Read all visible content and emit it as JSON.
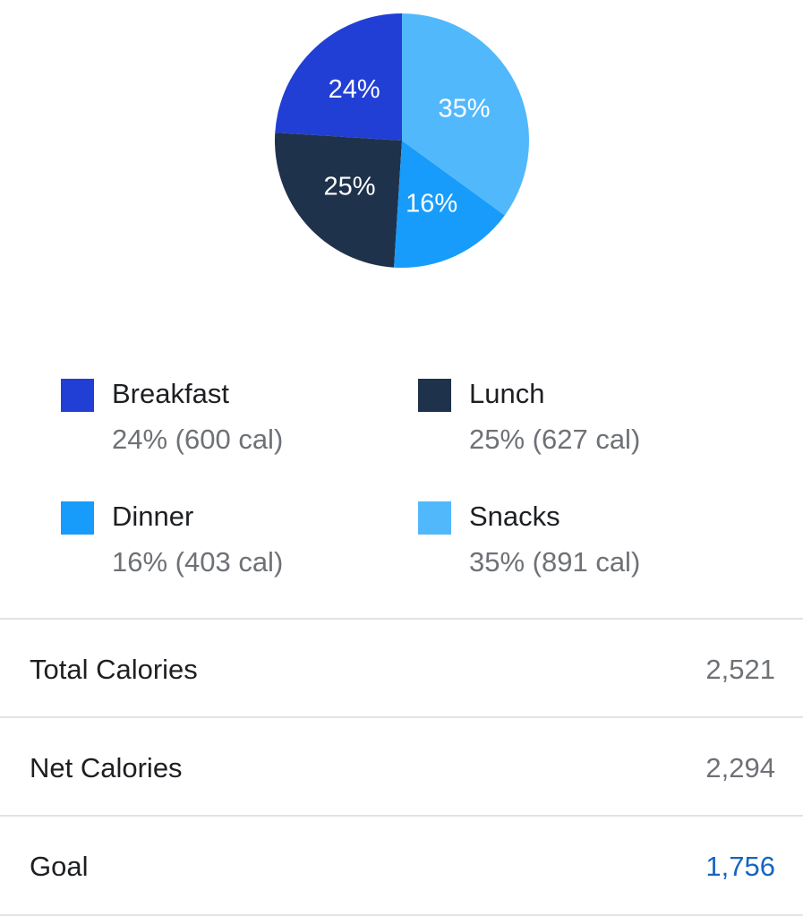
{
  "chart_data": {
    "type": "pie",
    "slices": [
      {
        "name": "Breakfast",
        "percent": 24,
        "calories": 600,
        "label": "24%",
        "color": "#213fd4"
      },
      {
        "name": "Lunch",
        "percent": 25,
        "calories": 627,
        "label": "25%",
        "color": "#1f324b"
      },
      {
        "name": "Dinner",
        "percent": 16,
        "calories": 403,
        "label": "16%",
        "color": "#179cfb"
      },
      {
        "name": "Snacks",
        "percent": 35,
        "calories": 891,
        "label": "35%",
        "color": "#52b8fc"
      }
    ],
    "start": "top",
    "direction": "counterclockwise"
  },
  "legend": {
    "items": [
      {
        "name": "Breakfast",
        "detail": "24% (600 cal)",
        "color": "#213fd4"
      },
      {
        "name": "Lunch",
        "detail": "25% (627 cal)",
        "color": "#1f324b"
      },
      {
        "name": "Dinner",
        "detail": "16% (403 cal)",
        "color": "#179cfb"
      },
      {
        "name": "Snacks",
        "detail": "35% (891 cal)",
        "color": "#52b8fc"
      }
    ]
  },
  "summary": {
    "total": {
      "label": "Total Calories",
      "value": "2,521"
    },
    "net": {
      "label": "Net Calories",
      "value": "2,294"
    },
    "goal": {
      "label": "Goal",
      "value": "1,756"
    }
  },
  "colors": {
    "text_primary": "#1d1f22",
    "text_secondary": "#6e7176",
    "accent": "#1565c0",
    "divider": "#e1e3e7"
  }
}
